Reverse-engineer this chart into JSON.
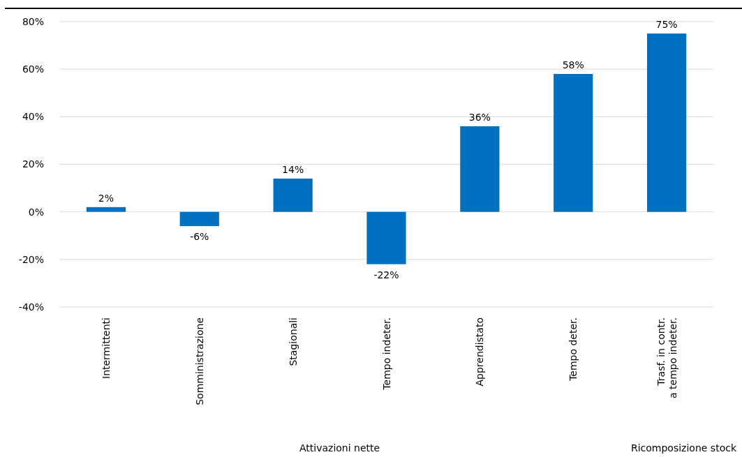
{
  "chart_data": {
    "type": "bar",
    "categories": [
      "Intermittenti",
      "Somministrazione",
      "Stagionali",
      "Tempo indeter.",
      "Apprendistato",
      "Tempo deter.",
      "Trasf. in contr.\na tempo indeter."
    ],
    "values": [
      2,
      -6,
      14,
      -22,
      36,
      58,
      75
    ],
    "color": "#0070c0",
    "value_labels": [
      "2%",
      "-6%",
      "14%",
      "-22%",
      "36%",
      "58%",
      "75%"
    ],
    "ylim": [
      -40,
      80
    ],
    "yticks": [
      {
        "value": -40,
        "label": "-40%"
      },
      {
        "value": -20,
        "label": "-20%"
      },
      {
        "value": 0,
        "label": "0%"
      },
      {
        "value": 20,
        "label": "20%"
      },
      {
        "value": 40,
        "label": "40%"
      },
      {
        "value": 60,
        "label": "60%"
      },
      {
        "value": 80,
        "label": "80%"
      }
    ],
    "grid": "y",
    "annotations": [
      "Attivazioni nette",
      "Ricomposizione stock"
    ]
  }
}
